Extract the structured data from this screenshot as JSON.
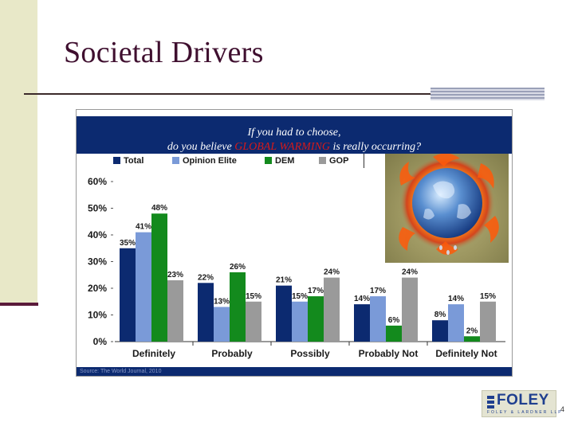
{
  "slide": {
    "title": "Societal Drivers",
    "page_number": "4"
  },
  "logo": {
    "name": "FOLEY",
    "subtitle": "FOLEY & LARDNER LLP"
  },
  "chart_data": {
    "type": "bar",
    "title_line1": "If you had to choose,",
    "title_line2_before": "do you believe ",
    "title_highlight": "GLOBAL WARMING",
    "title_line2_after": " is really occurring?",
    "categories": [
      "Definitely",
      "Probably",
      "Possibly",
      "Probably Not",
      "Definitely Not"
    ],
    "series": [
      {
        "name": "Total",
        "color": "#0c2a70",
        "values": [
          35,
          22,
          21,
          14,
          8
        ]
      },
      {
        "name": "Opinion Elite",
        "color": "#7a9ad8",
        "values": [
          41,
          13,
          15,
          17,
          14
        ]
      },
      {
        "name": "DEM",
        "color": "#138a1d",
        "values": [
          48,
          26,
          17,
          6,
          2
        ]
      },
      {
        "name": "GOP",
        "color": "#9a9a9a",
        "values": [
          23,
          15,
          24,
          24,
          15
        ]
      }
    ],
    "y_ticks": [
      "0%",
      "10%",
      "20%",
      "30%",
      "40%",
      "50%",
      "60%"
    ],
    "ylim": [
      0,
      60
    ],
    "value_suffix": "%",
    "legend_position": "top-left",
    "grid": false,
    "source": "Source: The World Journal, 2010"
  }
}
